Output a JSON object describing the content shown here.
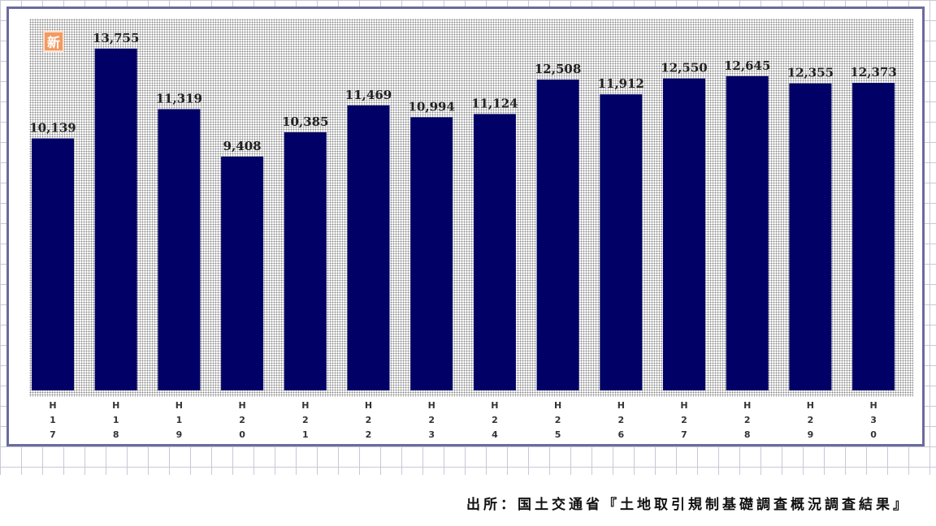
{
  "badge": {
    "label": "新"
  },
  "source": {
    "text": "出所：国土交通省『土地取引規制基礎調査概況調査結果』"
  },
  "colors": {
    "bar": "#000066",
    "frame": "#6b6b9e",
    "badge": "#f29b62"
  },
  "chart_data": {
    "type": "bar",
    "title": "",
    "xlabel": "",
    "ylabel": "",
    "categories": [
      "H17",
      "H18",
      "H19",
      "H20",
      "H21",
      "H22",
      "H23",
      "H24",
      "H25",
      "H26",
      "H27",
      "H28",
      "H29",
      "H30"
    ],
    "values": [
      10139,
      13755,
      11319,
      9408,
      10385,
      11469,
      10994,
      11124,
      12508,
      11912,
      12550,
      12645,
      12355,
      12373
    ],
    "value_labels": [
      "10,139",
      "13,755",
      "11,319",
      "9,408",
      "10,385",
      "11,469",
      "10,994",
      "11,124",
      "12,508",
      "11,912",
      "12,550",
      "12,645",
      "12,355",
      "12,373"
    ],
    "ylim": [
      0,
      14500
    ],
    "grid": false,
    "legend": "none",
    "tick_labels_vertical": true
  }
}
